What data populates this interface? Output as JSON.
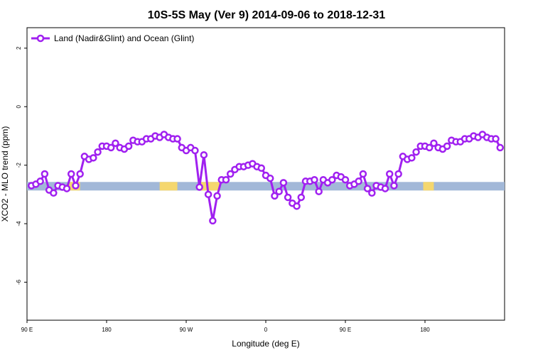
{
  "chart_data": {
    "type": "line",
    "title": "10S-5S May (Ver 9)   2014-09-06 to 2018-12-31",
    "xlabel": "Longitude (deg E)",
    "ylabel": "XCO2 - MLO trend (ppm)",
    "xlim": [
      -90,
      180
    ],
    "ylim": [
      -7.3,
      2.7
    ],
    "grid": false,
    "legend_position": "top-left",
    "x_ticks": [
      {
        "value": -90,
        "label": "90 E"
      },
      {
        "value": -45,
        "label": "180"
      },
      {
        "value": 0,
        "label": "90 W"
      },
      {
        "value": 45,
        "label": "0"
      },
      {
        "value": 90,
        "label": "90 E"
      },
      {
        "value": 135,
        "label": "180"
      }
    ],
    "y_ticks": [
      {
        "value": 2,
        "label": "2"
      },
      {
        "value": 0,
        "label": "0"
      },
      {
        "value": -2,
        "label": "-2"
      },
      {
        "value": -4,
        "label": "-4"
      },
      {
        "value": -6,
        "label": "-6"
      }
    ],
    "series": [
      {
        "name": "Land (Nadir&Glint) and Ocean (Glint)",
        "color": "#a020f0",
        "x": [
          -87.5,
          -85,
          -82.5,
          -80,
          -77.5,
          -75,
          -72.5,
          -70,
          -67.5,
          -65,
          -62.5,
          -60,
          -57.5,
          -55,
          -52.5,
          -50,
          -47.5,
          -45,
          -42.5,
          -40,
          -37.5,
          -35,
          -32.5,
          -30,
          -27.5,
          -25,
          -22.5,
          -20,
          -17.5,
          -15,
          -12.5,
          -10,
          -7.5,
          -5,
          -2.5,
          0,
          2.5,
          5,
          7.5,
          10,
          12.5,
          15,
          17.5,
          20,
          22.5,
          25,
          27.5,
          30,
          32.5,
          35,
          37.5,
          40,
          42.5,
          45,
          47.5,
          50,
          52.5,
          55,
          57.5,
          60,
          62.5,
          65,
          67.5,
          70,
          72.5,
          75,
          77.5,
          80,
          82.5,
          85,
          87.5,
          90,
          92.5,
          95,
          97.5,
          100,
          102.5,
          105,
          107.5,
          110,
          112.5,
          115,
          117.5,
          120,
          122.5,
          125,
          127.5,
          130,
          132.5,
          135,
          137.5,
          140,
          142.5,
          145,
          147.5,
          150,
          152.5,
          155,
          157.5,
          160,
          162.5,
          165,
          167.5,
          170,
          172.5,
          175,
          177.5
        ],
        "y": [
          -2.7,
          -2.65,
          -2.55,
          -2.3,
          -2.85,
          -2.95,
          -2.7,
          -2.75,
          -2.8,
          -2.3,
          -2.7,
          -2.3,
          -1.7,
          -1.8,
          -1.75,
          -1.55,
          -1.35,
          -1.35,
          -1.4,
          -1.25,
          -1.4,
          -1.45,
          -1.35,
          -1.15,
          -1.2,
          -1.2,
          -1.1,
          -1.1,
          -1.0,
          -1.05,
          -0.95,
          -1.05,
          -1.1,
          -1.1,
          -1.4,
          -1.5,
          -1.4,
          -1.5,
          -2.75,
          -1.65,
          -3.0,
          -3.9,
          -3.05,
          -2.5,
          -2.5,
          -2.3,
          -2.15,
          -2.05,
          -2.05,
          -2.0,
          -1.95,
          -2.05,
          -2.1,
          -2.35,
          -2.45,
          -3.05,
          -2.9,
          -2.6,
          -3.1,
          -3.3,
          -3.4,
          -3.1,
          -2.55,
          -2.55,
          -2.5,
          -2.9,
          -2.5,
          -2.6,
          -2.5,
          -2.35,
          -2.4,
          -2.5,
          -2.7,
          -2.65,
          -2.55,
          -2.3,
          -2.8,
          -2.95,
          -2.7,
          -2.75,
          -2.8,
          -2.3,
          -2.7,
          -2.3,
          -1.7,
          -1.8,
          -1.75,
          -1.55,
          -1.35,
          -1.35,
          -1.4,
          -1.25,
          -1.4,
          -1.45,
          -1.35,
          -1.15,
          -1.2,
          -1.2,
          -1.1,
          -1.1,
          -1.0,
          -1.05,
          -0.95,
          -1.05,
          -1.1,
          -1.1,
          -1.4
        ]
      }
    ],
    "surface_bar": {
      "y": -2.72,
      "ocean_color": "#a2b8d8",
      "land_color": "#f5d76e",
      "land_segments": [
        [
          -67,
          -60
        ],
        [
          -15,
          -5
        ],
        [
          7,
          19
        ],
        [
          -90,
          -90
        ],
        [
          134,
          140
        ]
      ]
    }
  }
}
